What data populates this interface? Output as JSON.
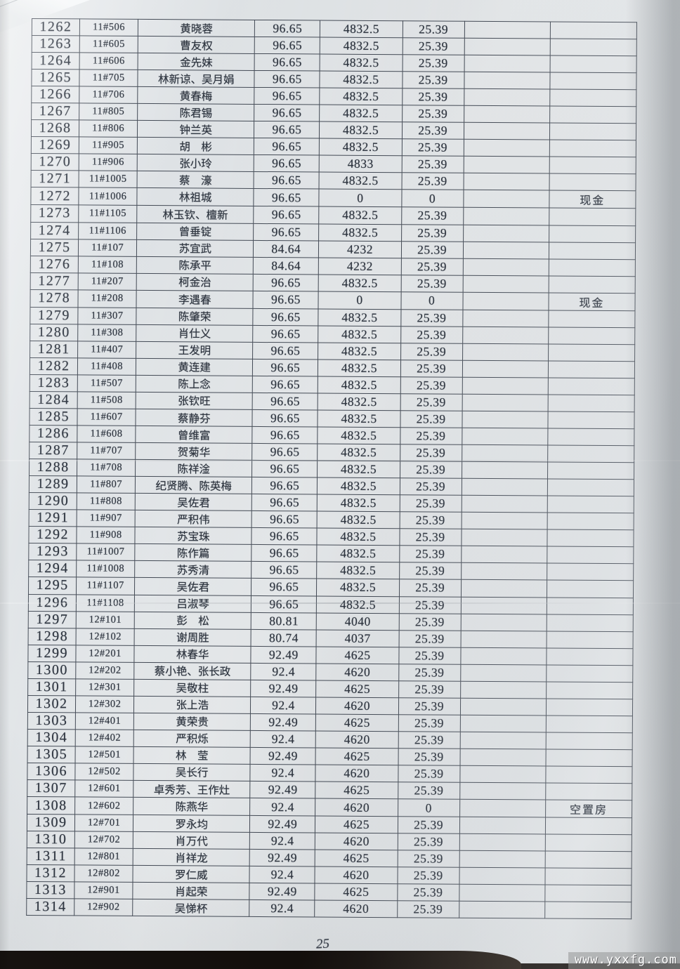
{
  "document": {
    "kind": "scanned fee ledger page",
    "page_number": "25",
    "watermark": "www.yxxfg.com"
  },
  "colors": {
    "paper": "#e3e6e8",
    "grid_line": "#454c57",
    "ink": "#2e3540",
    "desk": "#15100d",
    "watermark_bg": "#949596"
  },
  "table": {
    "columns": [
      "serial_no",
      "room_no",
      "owner_name",
      "area",
      "amount",
      "fee",
      "blank",
      "note"
    ],
    "rows": [
      [
        "1262",
        "11#506",
        "黄晓蓉",
        "96.65",
        "4832.5",
        "25.39",
        "",
        ""
      ],
      [
        "1263",
        "11#605",
        "曹友权",
        "96.65",
        "4832.5",
        "25.39",
        "",
        ""
      ],
      [
        "1264",
        "11#606",
        "金先妹",
        "96.65",
        "4832.5",
        "25.39",
        "",
        ""
      ],
      [
        "1265",
        "11#705",
        "林新谅、吴月娟",
        "96.65",
        "4832.5",
        "25.39",
        "",
        ""
      ],
      [
        "1266",
        "11#706",
        "黄春梅",
        "96.65",
        "4832.5",
        "25.39",
        "",
        ""
      ],
      [
        "1267",
        "11#805",
        "陈君锡",
        "96.65",
        "4832.5",
        "25.39",
        "",
        ""
      ],
      [
        "1268",
        "11#806",
        "钟兰英",
        "96.65",
        "4832.5",
        "25.39",
        "",
        ""
      ],
      [
        "1269",
        "11#905",
        "胡　彬",
        "96.65",
        "4832.5",
        "25.39",
        "",
        ""
      ],
      [
        "1270",
        "11#906",
        "张小玲",
        "96.65",
        "4833",
        "25.39",
        "",
        ""
      ],
      [
        "1271",
        "11#1005",
        "蔡　濠",
        "96.65",
        "4832.5",
        "25.39",
        "",
        ""
      ],
      [
        "1272",
        "11#1006",
        "林祖城",
        "96.65",
        "0",
        "0",
        "",
        "现金"
      ],
      [
        "1273",
        "11#1105",
        "林玉钦、檀新",
        "96.65",
        "4832.5",
        "25.39",
        "",
        ""
      ],
      [
        "1274",
        "11#1106",
        "曾垂锭",
        "96.65",
        "4832.5",
        "25.39",
        "",
        ""
      ],
      [
        "1275",
        "11#107",
        "苏宜武",
        "84.64",
        "4232",
        "25.39",
        "",
        ""
      ],
      [
        "1276",
        "11#108",
        "陈承平",
        "84.64",
        "4232",
        "25.39",
        "",
        ""
      ],
      [
        "1277",
        "11#207",
        "柯金治",
        "96.65",
        "4832.5",
        "25.39",
        "",
        ""
      ],
      [
        "1278",
        "11#208",
        "李遇春",
        "96.65",
        "0",
        "0",
        "",
        "现金"
      ],
      [
        "1279",
        "11#307",
        "陈肇荣",
        "96.65",
        "4832.5",
        "25.39",
        "",
        ""
      ],
      [
        "1280",
        "11#308",
        "肖仕义",
        "96.65",
        "4832.5",
        "25.39",
        "",
        ""
      ],
      [
        "1281",
        "11#407",
        "王发明",
        "96.65",
        "4832.5",
        "25.39",
        "",
        ""
      ],
      [
        "1282",
        "11#408",
        "黄连建",
        "96.65",
        "4832.5",
        "25.39",
        "",
        ""
      ],
      [
        "1283",
        "11#507",
        "陈上念",
        "96.65",
        "4832.5",
        "25.39",
        "",
        ""
      ],
      [
        "1284",
        "11#508",
        "张钦旺",
        "96.65",
        "4832.5",
        "25.39",
        "",
        ""
      ],
      [
        "1285",
        "11#607",
        "蔡静芬",
        "96.65",
        "4832.5",
        "25.39",
        "",
        ""
      ],
      [
        "1286",
        "11#608",
        "曾维富",
        "96.65",
        "4832.5",
        "25.39",
        "",
        ""
      ],
      [
        "1287",
        "11#707",
        "贺菊华",
        "96.65",
        "4832.5",
        "25.39",
        "",
        ""
      ],
      [
        "1288",
        "11#708",
        "陈祥淦",
        "96.65",
        "4832.5",
        "25.39",
        "",
        ""
      ],
      [
        "1289",
        "11#807",
        "纪贤腾、陈英梅",
        "96.65",
        "4832.5",
        "25.39",
        "",
        ""
      ],
      [
        "1290",
        "11#808",
        "吴佐君",
        "96.65",
        "4832.5",
        "25.39",
        "",
        ""
      ],
      [
        "1291",
        "11#907",
        "严积伟",
        "96.65",
        "4832.5",
        "25.39",
        "",
        ""
      ],
      [
        "1292",
        "11#908",
        "苏宝珠",
        "96.65",
        "4832.5",
        "25.39",
        "",
        ""
      ],
      [
        "1293",
        "11#1007",
        "陈作篇",
        "96.65",
        "4832.5",
        "25.39",
        "",
        ""
      ],
      [
        "1294",
        "11#1008",
        "苏秀清",
        "96.65",
        "4832.5",
        "25.39",
        "",
        ""
      ],
      [
        "1295",
        "11#1107",
        "吴佐君",
        "96.65",
        "4832.5",
        "25.39",
        "",
        ""
      ],
      [
        "1296",
        "11#1108",
        "吕淑琴",
        "96.65",
        "4832.5",
        "25.39",
        "",
        ""
      ],
      [
        "1297",
        "12#101",
        "彭　松",
        "80.81",
        "4040",
        "25.39",
        "",
        ""
      ],
      [
        "1298",
        "12#102",
        "谢周胜",
        "80.74",
        "4037",
        "25.39",
        "",
        ""
      ],
      [
        "1299",
        "12#201",
        "林春华",
        "92.49",
        "4625",
        "25.39",
        "",
        ""
      ],
      [
        "1300",
        "12#202",
        "蔡小艳、张长政",
        "92.4",
        "4620",
        "25.39",
        "",
        ""
      ],
      [
        "1301",
        "12#301",
        "吴敬柱",
        "92.49",
        "4625",
        "25.39",
        "",
        ""
      ],
      [
        "1302",
        "12#302",
        "张上浩",
        "92.4",
        "4620",
        "25.39",
        "",
        ""
      ],
      [
        "1303",
        "12#401",
        "黄荣贵",
        "92.49",
        "4625",
        "25.39",
        "",
        ""
      ],
      [
        "1304",
        "12#402",
        "严积烁",
        "92.4",
        "4620",
        "25.39",
        "",
        ""
      ],
      [
        "1305",
        "12#501",
        "林　莹",
        "92.49",
        "4625",
        "25.39",
        "",
        ""
      ],
      [
        "1306",
        "12#502",
        "吴长行",
        "92.4",
        "4620",
        "25.39",
        "",
        ""
      ],
      [
        "1307",
        "12#601",
        "卓秀芳、王作灶",
        "92.49",
        "4625",
        "25.39",
        "",
        ""
      ],
      [
        "1308",
        "12#602",
        "陈燕华",
        "92.4",
        "4620",
        "0",
        "",
        "空置房"
      ],
      [
        "1309",
        "12#701",
        "罗永均",
        "92.49",
        "4625",
        "25.39",
        "",
        ""
      ],
      [
        "1310",
        "12#702",
        "肖万代",
        "92.4",
        "4620",
        "25.39",
        "",
        ""
      ],
      [
        "1311",
        "12#801",
        "肖祥龙",
        "92.49",
        "4625",
        "25.39",
        "",
        ""
      ],
      [
        "1312",
        "12#802",
        "罗仁威",
        "92.4",
        "4620",
        "25.39",
        "",
        ""
      ],
      [
        "1313",
        "12#901",
        "肖起荣",
        "92.49",
        "4625",
        "25.39",
        "",
        ""
      ],
      [
        "1314",
        "12#902",
        "吴悌杯",
        "92.4",
        "4620",
        "25.39",
        "",
        ""
      ]
    ]
  }
}
